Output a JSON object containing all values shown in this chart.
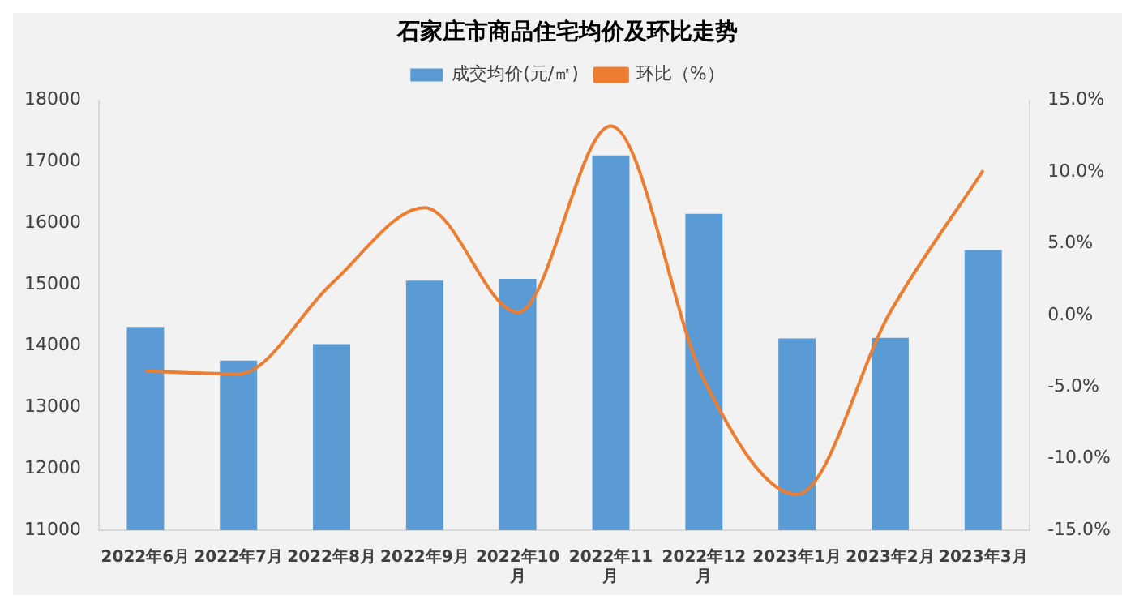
{
  "chart_data": {
    "type": "bar",
    "title": "石家庄市商品住宅均价及环比走势",
    "categories": [
      "2022年6月",
      "2022年7月",
      "2022年8月",
      "2022年9月",
      "2022年10月",
      "2022年11月",
      "2022年12月",
      "2023年1月",
      "2023年2月",
      "2023年3月"
    ],
    "series": [
      {
        "name": "成交均价(元/㎡)",
        "type": "bar",
        "color": "#5b9bd5",
        "values": [
          14310,
          13760,
          14030,
          15060,
          15090,
          17100,
          16150,
          14120,
          14130,
          15560
        ]
      },
      {
        "name": "环比（%）",
        "type": "line",
        "axis": "y2",
        "color": "#ed7d31",
        "values": [
          -3.9,
          -4.1,
          2.2,
          7.5,
          0.2,
          13.2,
          -4.5,
          -12.5,
          0.2,
          10.1
        ]
      }
    ],
    "ylim": [
      11000,
      18000
    ],
    "yticks": [
      11000,
      12000,
      13000,
      14000,
      15000,
      16000,
      17000,
      18000
    ],
    "y2lim": [
      -15,
      15
    ],
    "y2ticks": [
      {
        "value": -15,
        "label": "-15.0%"
      },
      {
        "value": -10,
        "label": "-10.0%"
      },
      {
        "value": -5,
        "label": "-5.0%"
      },
      {
        "value": 0,
        "label": "0.0%"
      },
      {
        "value": 5,
        "label": "5.0%"
      },
      {
        "value": 10,
        "label": "10.0%"
      },
      {
        "value": 15,
        "label": "15.0%"
      }
    ],
    "grid": false,
    "legend": "top",
    "marker": "none",
    "line_style": "solid"
  }
}
